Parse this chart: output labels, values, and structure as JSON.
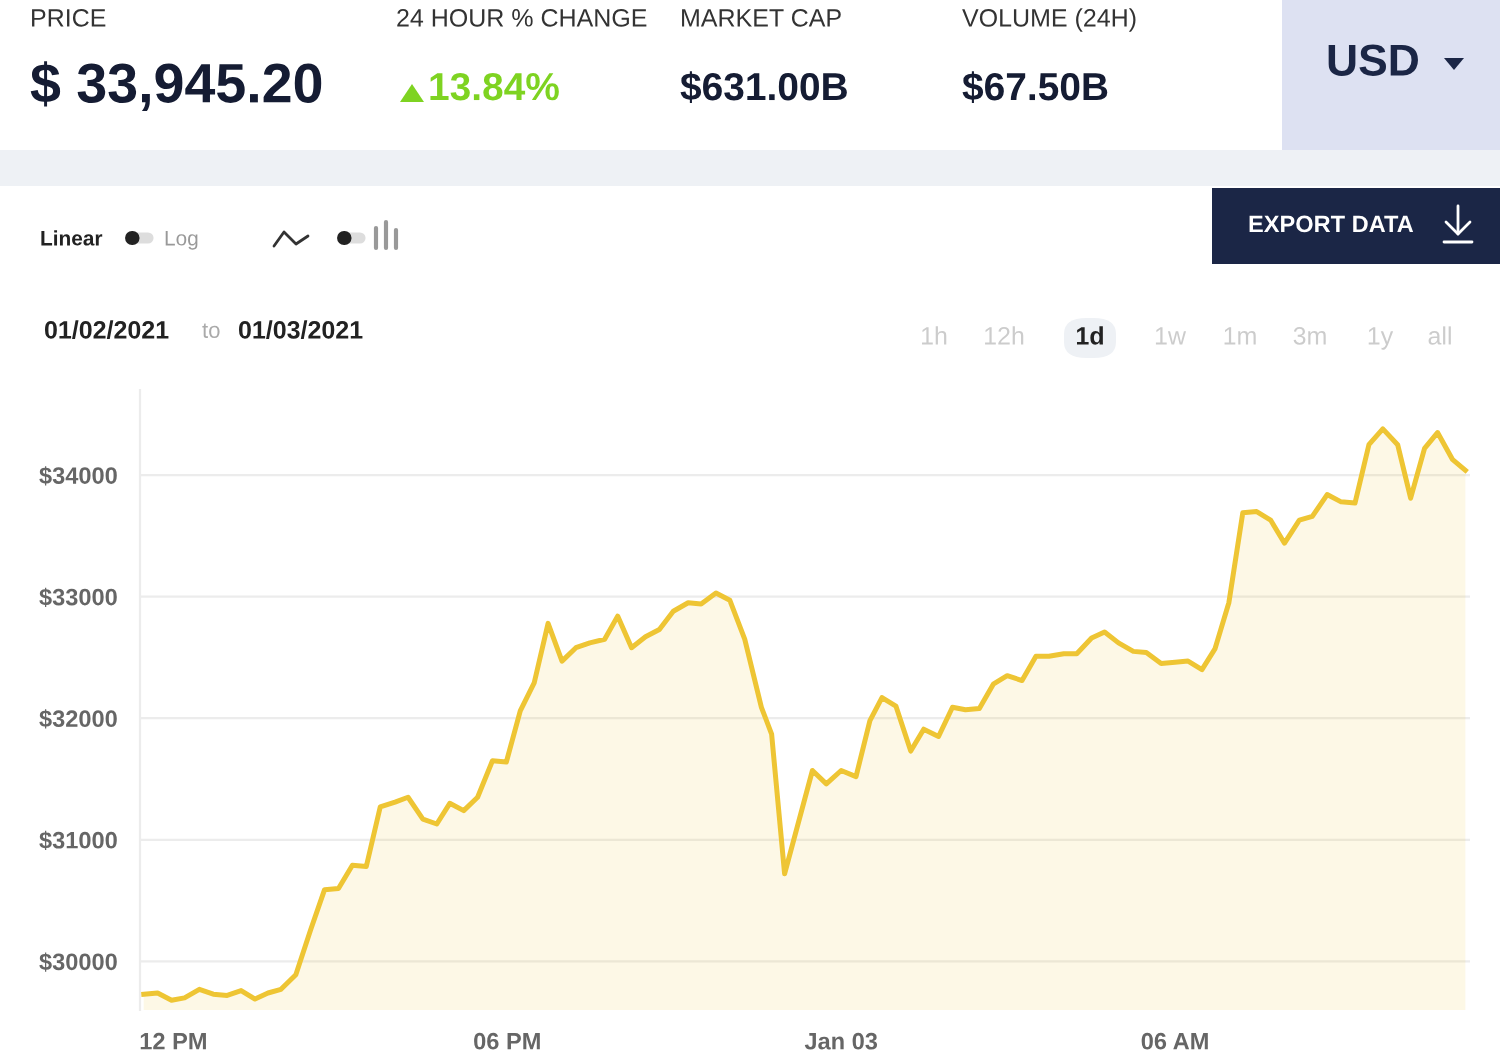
{
  "chart_data": {
    "type": "area",
    "annotations": [
      "PRICE",
      "$ 33,945.20",
      "24 HOUR % CHANGE",
      "13.84%",
      "MARKET CAP",
      "$631.00B",
      "VOLUME (24H)",
      "$67.50B",
      "USD",
      "Linear",
      "Log",
      "EXPORT DATA",
      "01/02/2021",
      "to",
      "01/03/2021",
      "1h",
      "12h",
      "1d",
      "1w",
      "1m",
      "3m",
      "1y",
      "all"
    ],
    "series": [
      {
        "color": "#eec534",
        "x": [
          "2021-01-02T11:28",
          "2021-01-02T11:43",
          "2021-01-02T11:58",
          "2021-01-02T12:12",
          "2021-01-02T12:28",
          "2021-01-02T12:43",
          "2021-01-02T12:58",
          "2021-01-02T13:13",
          "2021-01-02T13:28",
          "2021-01-02T13:42",
          "2021-01-02T13:56",
          "2021-01-02T14:12",
          "2021-01-02T14:28",
          "2021-01-02T14:43",
          "2021-01-02T14:58",
          "2021-01-02T15:13",
          "2021-01-02T15:28",
          "2021-01-02T15:43",
          "2021-01-02T15:59",
          "2021-01-02T16:13",
          "2021-01-02T16:29",
          "2021-01-02T16:44",
          "2021-01-02T16:58",
          "2021-01-02T17:13",
          "2021-01-02T17:28",
          "2021-01-02T17:44",
          "2021-01-02T17:59",
          "2021-01-02T18:14",
          "2021-01-02T18:29",
          "2021-01-02T18:44",
          "2021-01-02T18:59",
          "2021-01-02T19:14",
          "2021-01-02T19:29",
          "2021-01-02T19:45",
          "2021-01-02T19:59",
          "2021-01-02T20:14",
          "2021-01-02T20:29",
          "2021-01-02T20:44",
          "2021-01-02T20:59",
          "2021-01-02T21:15",
          "2021-01-02T21:29",
          "2021-01-02T21:45",
          "2021-01-02T22:00",
          "2021-01-02T22:16",
          "2021-01-02T22:34",
          "2021-01-02T22:45",
          "2021-01-02T22:59",
          "2021-01-02T23:29",
          "2021-01-02T23:44",
          "2021-01-03T00:00",
          "2021-01-03T00:16",
          "2021-01-03T00:31",
          "2021-01-03T00:44",
          "2021-01-03T00:59",
          "2021-01-03T01:15",
          "2021-01-03T01:29",
          "2021-01-03T01:45",
          "2021-01-03T02:00",
          "2021-01-03T02:14",
          "2021-01-03T02:29",
          "2021-01-03T02:44",
          "2021-01-03T02:59",
          "2021-01-03T03:15",
          "2021-01-03T03:30",
          "2021-01-03T03:44",
          "2021-01-03T04:00",
          "2021-01-03T04:14",
          "2021-01-03T04:30",
          "2021-01-03T04:44",
          "2021-01-03T04:59",
          "2021-01-03T05:15",
          "2021-01-03T05:29",
          "2021-01-03T05:45",
          "2021-01-03T06:00",
          "2021-01-03T06:14",
          "2021-01-03T06:29",
          "2021-01-03T06:43",
          "2021-01-03T06:58",
          "2021-01-03T07:13",
          "2021-01-03T07:28",
          "2021-01-03T07:43",
          "2021-01-03T07:58",
          "2021-01-03T08:14",
          "2021-01-03T08:28",
          "2021-01-03T08:44",
          "2021-01-03T08:59",
          "2021-01-03T09:14",
          "2021-01-03T09:29",
          "2021-01-03T09:44",
          "2021-01-03T10:00",
          "2021-01-03T10:14",
          "2021-01-03T10:29",
          "2021-01-03T10:43",
          "2021-01-03T10:59",
          "2021-01-03T11:13"
        ],
        "values": [
          29730,
          29740,
          29680,
          29700,
          29770,
          29730,
          29720,
          29760,
          29690,
          29740,
          29770,
          29890,
          30260,
          30590,
          30600,
          30790,
          30780,
          31270,
          31310,
          31350,
          31170,
          31130,
          31300,
          31240,
          31350,
          31650,
          31640,
          32060,
          32290,
          32780,
          32470,
          32580,
          32620,
          32650,
          32840,
          32580,
          32670,
          32730,
          32880,
          32950,
          32940,
          33030,
          32970,
          32650,
          32090,
          31870,
          30720,
          31570,
          31460,
          31570,
          31520,
          31980,
          32170,
          32100,
          31730,
          31910,
          31850,
          32090,
          32070,
          32080,
          32280,
          32350,
          32310,
          32510,
          32510,
          32530,
          32530,
          32660,
          32710,
          32620,
          32550,
          32540,
          32450,
          32460,
          32470,
          32400,
          32570,
          32950,
          33690,
          33700,
          33630,
          33440,
          33630,
          33660,
          33840,
          33780,
          33770,
          34250,
          34380,
          34250,
          33810,
          34220,
          34350,
          34130,
          34040
        ]
      }
    ],
    "xlim": [
      "2021-01-02T11:24",
      "2021-01-03T11:18"
    ],
    "xticks": [
      {
        "value": "2021-01-02T12:00",
        "label": "12 PM"
      },
      {
        "value": "2021-01-02T18:00",
        "label": "06 PM"
      },
      {
        "value": "2021-01-03T00:00",
        "label": "Jan 03"
      },
      {
        "value": "2021-01-03T06:00",
        "label": "06 AM"
      }
    ],
    "ylim": [
      29600,
      34700
    ],
    "yticks": [
      {
        "value": 30000,
        "label": "$30000"
      },
      {
        "value": 31000,
        "label": "$31000"
      },
      {
        "value": 32000,
        "label": "$32000"
      },
      {
        "value": 33000,
        "label": "$33000"
      },
      {
        "value": 34000,
        "label": "$34000"
      }
    ],
    "grid": "y"
  }
}
